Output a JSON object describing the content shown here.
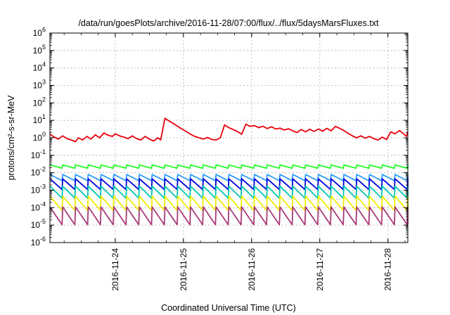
{
  "chart_data": {
    "type": "line",
    "title": "/data/run/goesPlots/archive/2016-11-28/07:00/flux/../flux/5daysMarsFluxes.txt",
    "xlabel": "Coordinated Universal Time (UTC)",
    "ylabel": "protons/cm²-s-sr-MeV",
    "y_scale": "log",
    "ylim": [
      1e-06,
      1000000.0
    ],
    "y_ticks": [
      {
        "value": 1e-06,
        "mantissa": "10",
        "exp": "-6"
      },
      {
        "value": 1e-05,
        "mantissa": "10",
        "exp": "-5"
      },
      {
        "value": 0.0001,
        "mantissa": "10",
        "exp": "-4"
      },
      {
        "value": 0.001,
        "mantissa": "10",
        "exp": "-3"
      },
      {
        "value": 0.01,
        "mantissa": "10",
        "exp": "-2"
      },
      {
        "value": 0.1,
        "mantissa": "10",
        "exp": "-1"
      },
      {
        "value": 1,
        "mantissa": "10",
        "exp": "0"
      },
      {
        "value": 10.0,
        "mantissa": "10",
        "exp": "1"
      },
      {
        "value": 100.0,
        "mantissa": "10",
        "exp": "2"
      },
      {
        "value": 1000.0,
        "mantissa": "10",
        "exp": "3"
      },
      {
        "value": 10000.0,
        "mantissa": "10",
        "exp": "4"
      },
      {
        "value": 100000.0,
        "mantissa": "10",
        "exp": "5"
      },
      {
        "value": 1000000.0,
        "mantissa": "10",
        "exp": "6"
      }
    ],
    "x_scale": "time",
    "xlim": [
      "2016-11-23T01:00",
      "2016-11-28T07:00"
    ],
    "x_ticks": [
      "2016-11-24",
      "2016-11-25",
      "2016-11-26",
      "2016-11-27",
      "2016-11-28"
    ],
    "grid": true,
    "legend": "none",
    "series": [
      {
        "color": "#e8000b",
        "x": [
          "2016-11-23T01:00",
          "2016-11-23T02:30",
          "2016-11-23T04:00",
          "2016-11-23T05:30",
          "2016-11-23T07:00",
          "2016-11-23T08:30",
          "2016-11-23T10:00",
          "2016-11-23T11:00",
          "2016-11-23T12:30",
          "2016-11-23T14:00",
          "2016-11-23T15:30",
          "2016-11-23T17:00",
          "2016-11-23T18:30",
          "2016-11-23T20:00",
          "2016-11-23T21:30",
          "2016-11-23T23:00",
          "2016-11-24T00:00",
          "2016-11-24T01:30",
          "2016-11-24T03:00",
          "2016-11-24T04:30",
          "2016-11-24T06:00",
          "2016-11-24T07:30",
          "2016-11-24T09:00",
          "2016-11-24T10:30",
          "2016-11-24T12:00",
          "2016-11-24T13:30",
          "2016-11-24T15:00",
          "2016-11-24T16:00",
          "2016-11-24T17:30",
          "2016-11-24T19:00",
          "2016-11-24T20:30",
          "2016-11-24T22:00",
          "2016-11-24T23:30",
          "2016-11-25T01:00",
          "2016-11-25T02:30",
          "2016-11-25T04:00",
          "2016-11-25T05:30",
          "2016-11-25T07:00",
          "2016-11-25T08:30",
          "2016-11-25T10:00",
          "2016-11-25T11:30",
          "2016-11-25T13:00",
          "2016-11-25T14:30",
          "2016-11-25T16:00",
          "2016-11-25T17:30",
          "2016-11-25T19:00",
          "2016-11-25T20:30",
          "2016-11-25T22:00",
          "2016-11-25T23:30",
          "2016-11-26T01:00",
          "2016-11-26T02:30",
          "2016-11-26T04:00",
          "2016-11-26T05:30",
          "2016-11-26T07:00",
          "2016-11-26T08:30",
          "2016-11-26T10:00",
          "2016-11-26T11:30",
          "2016-11-26T13:00",
          "2016-11-26T14:30",
          "2016-11-26T16:00",
          "2016-11-26T17:30",
          "2016-11-26T19:00",
          "2016-11-26T20:30",
          "2016-11-26T22:00",
          "2016-11-26T23:30",
          "2016-11-27T01:00",
          "2016-11-27T02:30",
          "2016-11-27T04:00",
          "2016-11-27T05:30",
          "2016-11-27T07:00",
          "2016-11-27T08:30",
          "2016-11-27T10:00",
          "2016-11-27T11:30",
          "2016-11-27T13:00",
          "2016-11-27T14:30",
          "2016-11-27T16:00",
          "2016-11-27T17:30",
          "2016-11-27T19:00",
          "2016-11-27T20:30",
          "2016-11-27T22:00",
          "2016-11-27T23:30",
          "2016-11-28T01:00",
          "2016-11-28T02:30",
          "2016-11-28T04:00",
          "2016-11-28T05:00",
          "2016-11-28T06:30",
          "2016-11-28T07:00"
        ],
        "y": [
          1.6,
          1.1,
          0.85,
          1.3,
          0.9,
          0.75,
          0.6,
          1.0,
          0.75,
          1.2,
          0.85,
          1.5,
          1.0,
          1.9,
          1.4,
          1.2,
          1.7,
          1.3,
          1.1,
          0.9,
          1.3,
          0.9,
          0.75,
          1.2,
          0.85,
          0.65,
          1.0,
          0.75,
          13.0,
          9.0,
          6.5,
          4.5,
          3.2,
          2.3,
          1.6,
          1.2,
          1.0,
          0.85,
          1.05,
          0.8,
          0.75,
          1.0,
          5.5,
          3.8,
          3.0,
          2.3,
          1.6,
          6.0,
          4.5,
          5.0,
          3.8,
          4.6,
          3.4,
          4.3,
          3.2,
          3.6,
          2.8,
          3.3,
          2.5,
          2.0,
          3.0,
          2.2,
          3.1,
          2.3,
          3.2,
          2.4,
          3.5,
          2.5,
          4.5,
          3.5,
          2.6,
          1.8,
          1.3,
          1.0,
          1.3,
          0.95,
          1.2,
          0.9,
          0.75,
          1.1,
          0.8,
          2.2,
          1.7,
          2.6,
          2.0,
          1.2,
          2.3
        ]
      },
      {
        "color": "#22ff22",
        "x": "sawtooth",
        "period_hours": 4.5,
        "peak": 0.028,
        "trough": 0.018
      },
      {
        "color": "#2a9df4",
        "x": "sawtooth",
        "period_hours": 4.5,
        "peak": 0.008,
        "trough": 0.0035
      },
      {
        "color": "#0000e0",
        "x": "sawtooth",
        "period_hours": 4.5,
        "peak": 0.0045,
        "trough": 0.0011
      },
      {
        "color": "#00c8b4",
        "x": "sawtooth",
        "period_hours": 4.5,
        "peak": 0.0017,
        "trough": 0.00035
      },
      {
        "color": "#f0ec00",
        "x": "sawtooth",
        "period_hours": 4.5,
        "peak": 0.00045,
        "trough": 7e-05
      },
      {
        "color": "#a83a78",
        "x": "sawtooth",
        "period_hours": 4.5,
        "peak": 0.00011,
        "trough": 1.05e-05
      }
    ]
  }
}
